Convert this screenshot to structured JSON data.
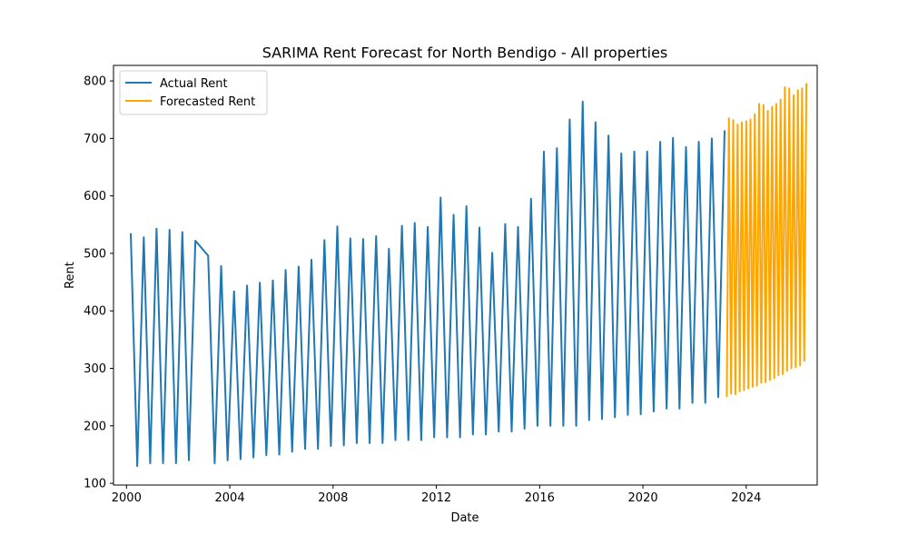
{
  "chart_data": {
    "type": "line",
    "title": "SARIMA Rent Forecast for North Bendigo - All properties",
    "xlabel": "Date",
    "ylabel": "Rent",
    "xlim": [
      "1999-07-01",
      "2026-10-01"
    ],
    "ylim": [
      97,
      827
    ],
    "x_ticks": [
      "2000",
      "2004",
      "2008",
      "2012",
      "2016",
      "2020",
      "2024"
    ],
    "y_ticks": [
      100,
      200,
      300,
      400,
      500,
      600,
      700,
      800
    ],
    "grid": false,
    "legend_position": "top-left",
    "series": [
      {
        "name": "Actual Rent",
        "color": "#1f77b4",
        "points": [
          [
            "2000-03-01",
            535
          ],
          [
            "2000-06-01",
            130
          ],
          [
            "2000-09-01",
            528
          ],
          [
            "2000-12-01",
            135
          ],
          [
            "2001-03-01",
            543
          ],
          [
            "2001-06-01",
            135
          ],
          [
            "2001-09-01",
            541
          ],
          [
            "2001-12-01",
            135
          ],
          [
            "2002-03-01",
            537
          ],
          [
            "2002-06-01",
            140
          ],
          [
            "2002-09-01",
            522
          ],
          [
            "2003-03-01",
            496
          ],
          [
            "2003-06-01",
            135
          ],
          [
            "2003-09-01",
            478
          ],
          [
            "2003-12-01",
            140
          ],
          [
            "2004-03-01",
            434
          ],
          [
            "2004-06-01",
            142
          ],
          [
            "2004-09-01",
            444
          ],
          [
            "2004-12-01",
            145
          ],
          [
            "2005-03-01",
            449
          ],
          [
            "2005-06-01",
            149
          ],
          [
            "2005-09-01",
            453
          ],
          [
            "2005-12-01",
            150
          ],
          [
            "2006-03-01",
            471
          ],
          [
            "2006-06-01",
            155
          ],
          [
            "2006-09-01",
            477
          ],
          [
            "2006-12-01",
            160
          ],
          [
            "2007-03-01",
            489
          ],
          [
            "2007-06-01",
            160
          ],
          [
            "2007-09-01",
            523
          ],
          [
            "2007-12-01",
            165
          ],
          [
            "2008-03-01",
            547
          ],
          [
            "2008-06-01",
            166
          ],
          [
            "2008-09-01",
            526
          ],
          [
            "2008-12-01",
            170
          ],
          [
            "2009-03-01",
            525
          ],
          [
            "2009-06-01",
            170
          ],
          [
            "2009-09-01",
            530
          ],
          [
            "2009-12-01",
            170
          ],
          [
            "2010-03-01",
            508
          ],
          [
            "2010-06-01",
            175
          ],
          [
            "2010-09-01",
            548
          ],
          [
            "2010-12-01",
            175
          ],
          [
            "2011-03-01",
            553
          ],
          [
            "2011-06-01",
            175
          ],
          [
            "2011-09-01",
            546
          ],
          [
            "2011-12-01",
            180
          ],
          [
            "2012-03-01",
            597
          ],
          [
            "2012-06-01",
            180
          ],
          [
            "2012-09-01",
            567
          ],
          [
            "2012-12-01",
            180
          ],
          [
            "2013-03-01",
            582
          ],
          [
            "2013-06-01",
            185
          ],
          [
            "2013-09-01",
            545
          ],
          [
            "2013-12-01",
            185
          ],
          [
            "2014-03-01",
            501
          ],
          [
            "2014-06-01",
            190
          ],
          [
            "2014-09-01",
            551
          ],
          [
            "2014-12-01",
            190
          ],
          [
            "2015-03-01",
            546
          ],
          [
            "2015-06-01",
            195
          ],
          [
            "2015-09-01",
            595
          ],
          [
            "2015-12-01",
            200
          ],
          [
            "2016-03-01",
            677
          ],
          [
            "2016-06-01",
            200
          ],
          [
            "2016-09-01",
            683
          ],
          [
            "2016-12-01",
            200
          ],
          [
            "2017-03-01",
            733
          ],
          [
            "2017-06-01",
            200
          ],
          [
            "2017-09-01",
            764
          ],
          [
            "2017-12-01",
            210
          ],
          [
            "2018-03-01",
            728
          ],
          [
            "2018-06-01",
            212
          ],
          [
            "2018-09-01",
            705
          ],
          [
            "2018-12-01",
            215
          ],
          [
            "2019-03-01",
            674
          ],
          [
            "2019-06-01",
            219
          ],
          [
            "2019-09-01",
            677
          ],
          [
            "2019-12-01",
            220
          ],
          [
            "2020-03-01",
            677
          ],
          [
            "2020-06-01",
            225
          ],
          [
            "2020-09-01",
            694
          ],
          [
            "2020-12-01",
            230
          ],
          [
            "2021-03-01",
            701
          ],
          [
            "2021-06-01",
            230
          ],
          [
            "2021-09-01",
            685
          ],
          [
            "2021-12-01",
            240
          ],
          [
            "2022-03-01",
            694
          ],
          [
            "2022-06-01",
            240
          ],
          [
            "2022-09-01",
            700
          ],
          [
            "2022-12-01",
            250
          ],
          [
            "2023-03-01",
            714
          ]
        ]
      },
      {
        "name": "Forecasted Rent",
        "color": "#ffa500",
        "points": [
          [
            "2023-04-01",
            250
          ],
          [
            "2023-05-01",
            735
          ],
          [
            "2023-06-01",
            256
          ],
          [
            "2023-07-01",
            732
          ],
          [
            "2023-08-01",
            255
          ],
          [
            "2023-09-01",
            724
          ],
          [
            "2023-10-01",
            260
          ],
          [
            "2023-11-01",
            728
          ],
          [
            "2023-12-01",
            262
          ],
          [
            "2024-01-01",
            730
          ],
          [
            "2024-02-01",
            265
          ],
          [
            "2024-03-01",
            733
          ],
          [
            "2024-04-01",
            268
          ],
          [
            "2024-05-01",
            742
          ],
          [
            "2024-06-01",
            270
          ],
          [
            "2024-07-01",
            760
          ],
          [
            "2024-08-01",
            275
          ],
          [
            "2024-09-01",
            758
          ],
          [
            "2024-10-01",
            276
          ],
          [
            "2024-11-01",
            748
          ],
          [
            "2024-12-01",
            280
          ],
          [
            "2025-01-01",
            755
          ],
          [
            "2025-02-01",
            283
          ],
          [
            "2025-03-01",
            760
          ],
          [
            "2025-04-01",
            288
          ],
          [
            "2025-05-01",
            768
          ],
          [
            "2025-06-01",
            290
          ],
          [
            "2025-07-01",
            789
          ],
          [
            "2025-08-01",
            296
          ],
          [
            "2025-09-01",
            787
          ],
          [
            "2025-10-01",
            300
          ],
          [
            "2025-11-01",
            775
          ],
          [
            "2025-12-01",
            302
          ],
          [
            "2026-01-01",
            784
          ],
          [
            "2026-02-01",
            305
          ],
          [
            "2026-03-01",
            787
          ],
          [
            "2026-04-01",
            313
          ],
          [
            "2026-05-01",
            796
          ]
        ]
      }
    ]
  }
}
